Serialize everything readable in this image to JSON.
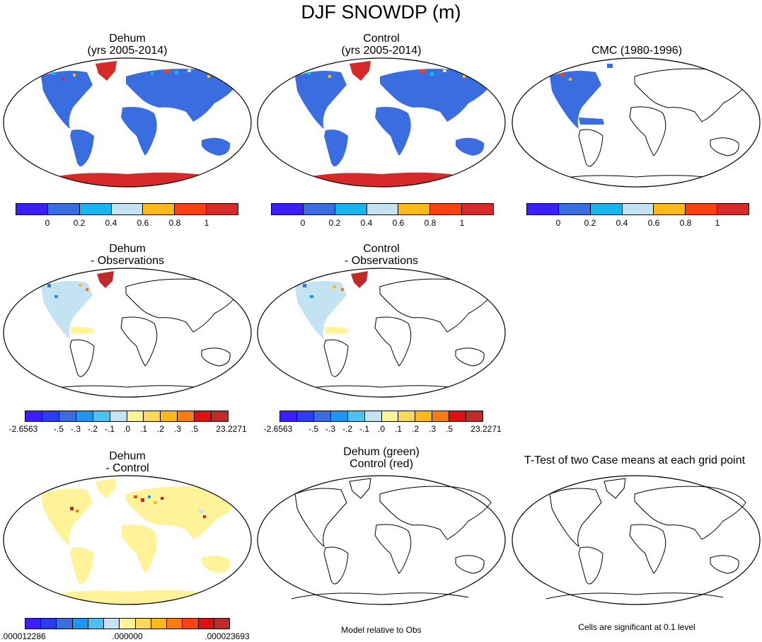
{
  "title": "DJF SNOWDP (m)",
  "panels": {
    "dehum": {
      "line1": "Dehum",
      "line2": "(yrs 2005-2014)"
    },
    "control": {
      "line1": "Control",
      "line2": "(yrs 2005-2014)"
    },
    "cmc": {
      "line1": "CMC (1980-1996)"
    },
    "dehum_obs": {
      "line1": "Dehum",
      "line2": "- Observations"
    },
    "control_obs": {
      "line1": "Control",
      "line2": "- Observations"
    },
    "dehum_control": {
      "line1": "Dehum",
      "line2": "- Control"
    },
    "green_red": {
      "line1": "Dehum (green)",
      "line2": "Control (red)"
    },
    "ttest": {
      "line1": "T-Test of two Case means at each grid point"
    }
  },
  "colorbar_abs": {
    "colors": [
      "#3b1fff",
      "#3a6ee0",
      "#1ab4ee",
      "#c3e3f3",
      "#ffb81a",
      "#ff4010",
      "#d62a2a"
    ],
    "ticks": [
      "0",
      "0.2",
      "0.4",
      "0.6",
      "0.8",
      "1"
    ]
  },
  "colorbar_obs": {
    "colors": [
      "#3b1fff",
      "#2a3df0",
      "#3a6ee0",
      "#1e96f0",
      "#50c0f0",
      "#c3e3f3",
      "#fff39a",
      "#ffd75a",
      "#ffb81a",
      "#ff7a10",
      "#e01010",
      "#c02a2a"
    ],
    "ticks": [
      "-2.6563",
      "-.5",
      "-.3",
      "-.2",
      "-.1",
      ".0",
      ".1",
      ".2",
      ".3",
      ".5",
      "23.2271"
    ]
  },
  "colorbar_diff": {
    "colors": [
      "#3b1fff",
      "#2a3df0",
      "#3a6ee0",
      "#1e96f0",
      "#50c0f0",
      "#c3e3f3",
      "#fff39a",
      "#ffd75a",
      "#ffb81a",
      "#ff7a10",
      "#ff4010",
      "#e01010",
      "#c02a2a"
    ],
    "ticks": [
      ".000012286",
      ".000000",
      ".000023693"
    ]
  },
  "notes": {
    "model_rel": "Model relative to Obs",
    "cells_sig": "Cells are significant at 0.1 level"
  }
}
